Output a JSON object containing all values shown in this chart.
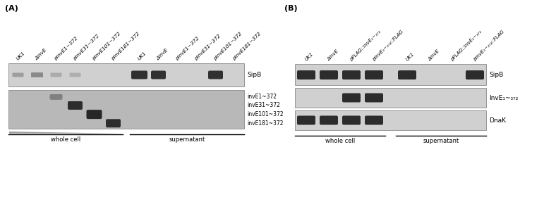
{
  "figsize": [
    7.88,
    2.83
  ],
  "dpi": 100,
  "bg_color": "#ffffff",
  "panel_A": {
    "label": "(A)",
    "cols_whole": [
      "UK1",
      "ΔinvE",
      "pinvE1~372",
      "pinvE31~372",
      "pinvE101~372",
      "pinvE181~372"
    ],
    "cols_super": [
      "UK1",
      "ΔinvE",
      "pinvE1~372",
      "pinvE31~372",
      "pinvE101~372",
      "pinvE181~372"
    ],
    "blot1_label": "SipB",
    "blot2_labels": [
      "invE1~372",
      "invE31~372",
      "invE101~372",
      "invE181~372"
    ],
    "blot_bg1": "#d0d0d0",
    "blot_bg2": "#b8b8b8",
    "band_color": "#1a1a1a",
    "whole_cell_label": "whole cell",
    "supernatant_label": "supernatant"
  },
  "panel_B": {
    "label": "(B)",
    "cols_whole": [
      "UK1",
      "ΔinvE",
      "pFLAG::invE₁~₃₇₂",
      "pinvE₁~₃₇₂::FLAG"
    ],
    "cols_super": [
      "UK1",
      "ΔinvE",
      "pFLAG::invE₁~₃₇₂",
      "pinvE₁~₃₇₂::FLAG"
    ],
    "blot1_label": "SipB",
    "blot2_label": "InvE₁~₃₇₂",
    "blot3_label": "DnaK",
    "blot_bg": "#d0d0d0",
    "band_color": "#1a1a1a",
    "whole_cell_label": "whole cell",
    "supernatant_label": "supernatant"
  }
}
